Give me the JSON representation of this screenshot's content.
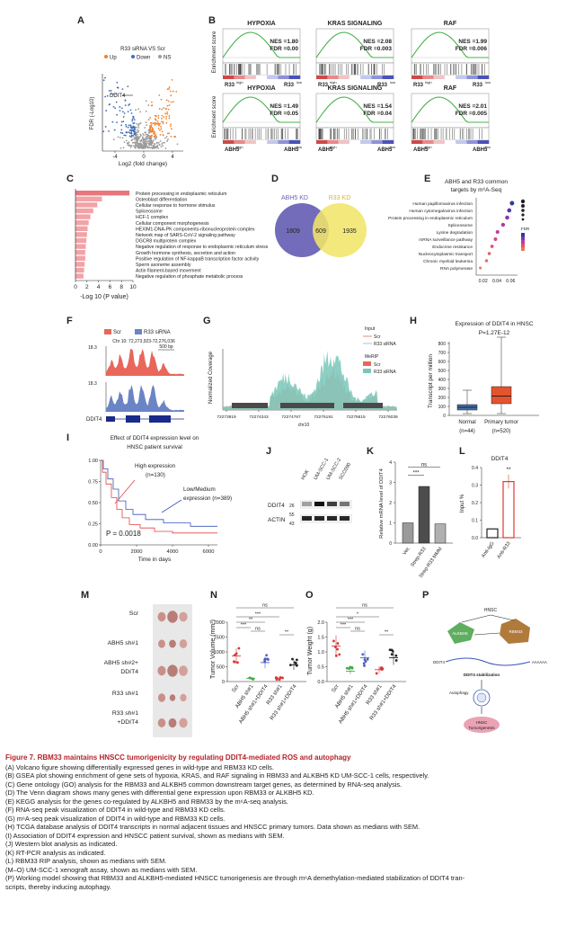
{
  "figure": {
    "panel_labels": [
      "A",
      "B",
      "C",
      "D",
      "E",
      "F",
      "G",
      "H",
      "I",
      "J",
      "K",
      "L",
      "M",
      "N",
      "O",
      "P"
    ],
    "A": {
      "title": "R33 siRNA VS Scr",
      "legend": [
        {
          "label": "Up",
          "color": "#f2802b"
        },
        {
          "label": "Down",
          "color": "#3f6fb5"
        },
        {
          "label": "NS",
          "color": "#9a9a9a"
        }
      ],
      "gene_label": "DDIT4",
      "xlabel": "Log2 (fold change)",
      "ylabel": "FDR (-Log10)",
      "xticks": [
        "-4",
        "0",
        "4"
      ]
    },
    "B": {
      "ylabel": "Enrichment score",
      "plots": [
        {
          "title": "HYPOXIA",
          "nes": "NES =1.80",
          "fdr": "FDR =0.00",
          "high": "R33",
          "low": "R33"
        },
        {
          "title": "KRAS SIGNALING",
          "nes": "NES =2.08",
          "fdr": "FDR =0.003",
          "high": "R33",
          "low": "R33"
        },
        {
          "title": "RAF",
          "nes": "NES =1.99",
          "fdr": "FDR =0.006",
          "high": "R33",
          "low": "R33"
        },
        {
          "title": "HYPOXIA",
          "nes": "NES =1.49",
          "fdr": "FDR =0.05",
          "high": "ABH5",
          "low": "ABH5"
        },
        {
          "title": "KRAS SIGNALING",
          "nes": "NES =1.54",
          "fdr": "FDR =0.04",
          "high": "ABH5",
          "low": "ABH5"
        },
        {
          "title": "RAF",
          "nes": "NES =2.01",
          "fdr": "FDR =0.005",
          "high": "ABH5",
          "low": "ABH5"
        }
      ],
      "high_sup": "high",
      "low_sup": "low"
    },
    "C": {
      "terms": [
        "Protein processing in endoplasmic reticulum",
        "Osteoblast differentiation",
        "Cellular response to hormone stimulus",
        "Spliceosome",
        "HCF-1 complex",
        "Cellular component morphogenesis",
        "HEXIM1-DNA-PK components-ribonucleoprotein complex",
        "Network map of SARS-CoV-2 signaling pathway",
        "DGCR8 multiprotein complex",
        "Negative regulation of response to endoplasmic reticulum stress",
        "Growth hormone synthesis, secretion and action",
        "Positive regulation of NF-kappaB transcription factor activity",
        "Sperm axoneme assembly",
        "Actin filament-based movement",
        "Negative regulation of phosphate metabolic process"
      ],
      "values": [
        9.4,
        4.6,
        3.8,
        3.1,
        2.6,
        2.3,
        2.1,
        2.0,
        1.9,
        1.8,
        1.7,
        1.7,
        1.6,
        1.5,
        1.4
      ],
      "xticks": [
        "0",
        "2",
        "4",
        "6",
        "8",
        "10"
      ],
      "xlabel": "-Log 10 (P value)"
    },
    "D": {
      "left_label": "ABH5 KD",
      "right_label": "R33 KD",
      "left_count": "1809",
      "overlap_count": "609",
      "right_count": "1935"
    },
    "E": {
      "title_line1": "ABH5 and R33 common",
      "title_line2": "targets by m⁶A-Seq",
      "terms": [
        "Human papillomavirus infection",
        "Human cytomegalovirus infection",
        "Protein processing in endoplasmic reticulum",
        "Spliceosome",
        "Lysine degradation",
        "mRNA surveillance pathway",
        "Endocrine resistance",
        "Nucleocytoplasmic transport",
        "Chronic myeloid leukemia",
        "RNA polymerase"
      ],
      "ratios": [
        0.062,
        0.058,
        0.055,
        0.049,
        0.041,
        0.038,
        0.033,
        0.029,
        0.025,
        0.016
      ],
      "xticks": [
        "0.02",
        "0.04",
        "0.06"
      ],
      "legend_title": "FDR"
    },
    "F": {
      "legend": [
        {
          "label": "Scr",
          "color": "#e8675a"
        },
        {
          "label": "R33 siRNA",
          "color": "#6a84c6"
        }
      ],
      "locus": "Chr 10: 72,273,923-72,276,036",
      "scale": "500 bp",
      "y_max": "18.3",
      "gene": "DDIT4"
    },
    "G": {
      "legend_input": "Input",
      "legend_merip": "MeRIP",
      "series": [
        "Scr",
        "R33 siRNA"
      ],
      "ylabel": "Normalized Coverage",
      "xticks": [
        "72273919",
        "72274343",
        "72274767",
        "72275191",
        "72275615",
        "72276039"
      ],
      "xlabel": "chr10"
    },
    "H": {
      "title": "Expression of DDIT4 in HNSC",
      "pvalue": "P=1.27E-12",
      "ylabel": "Transcript per million",
      "yticks": [
        "0",
        "100",
        "200",
        "300",
        "400",
        "500",
        "600",
        "700",
        "800"
      ],
      "groups": [
        {
          "name": "Normal",
          "n": "(n=44)",
          "color": "#3e6fb0",
          "q1": 60,
          "median": 90,
          "q3": 120,
          "min": 20,
          "max": 280
        },
        {
          "name": "Primary tumor",
          "n": "(n=520)",
          "color": "#e5532e",
          "q1": 130,
          "median": 215,
          "q3": 320,
          "min": 20,
          "max": 870
        }
      ]
    },
    "I": {
      "title_line1": "Effect  of DDIT4 expression level on",
      "title_line2": "HNSC patient survival",
      "high_label": "High expression",
      "high_n": "(n=130)",
      "low_label": "Low/Medium",
      "low_n": "expression (n=389)",
      "pvalue": "P = 0.0018",
      "xlabel": "Time in days",
      "xticks": [
        "0",
        "2000",
        "4000",
        "6000"
      ],
      "yticks": [
        "1.00",
        "0.75",
        "0.50",
        "0.25",
        "0.00"
      ]
    },
    "J": {
      "lanes": [
        "HOK",
        "UM-SCC-1",
        "UM-SCC-2",
        "SCC090"
      ],
      "rows": [
        "DDIT4",
        "ACTIN"
      ],
      "markers": [
        "26",
        "55",
        "43"
      ]
    },
    "K": {
      "ylabel": "Relative mRNA level of DDIT4",
      "categories": [
        "Vec",
        "Strep-R33",
        "Strep-R33 MMM"
      ],
      "values": [
        1.0,
        2.8,
        0.95
      ],
      "sig_labels": [
        "***",
        "ns"
      ],
      "yticks": [
        "0",
        "1",
        "2",
        "3",
        "4"
      ]
    },
    "L": {
      "title": "DDIT4",
      "ylabel": "Input %",
      "categories": [
        "Anti-IgG",
        "Anti-R33"
      ],
      "values": [
        0.05,
        0.32
      ],
      "sig_label": "**",
      "yticks": [
        "0.0",
        "0.1",
        "0.2",
        "0.3",
        "0.4"
      ]
    },
    "M": {
      "groups": [
        "Scr",
        "ABH5 sh#1",
        "ABH5 sh#2+ DDIT4",
        "R33 sh#1",
        "R33 sh#1 +DDIT4"
      ],
      "group_lines": [
        [
          "Scr"
        ],
        [
          "ABH5 sh#1"
        ],
        [
          "ABH5 sh#2+",
          "DDIT4"
        ],
        [
          "R33 sh#1"
        ],
        [
          "R33 sh#1",
          "+DDIT4"
        ]
      ]
    },
    "N": {
      "ylabel": "Tumor Volume (mm³)",
      "categories": [
        "Scr",
        "ABH5 sh#1",
        "ABH5 sh#1+DDIT4",
        "R33 sh#1",
        "R33 sh#1+DDIT4"
      ],
      "means": [
        860,
        110,
        640,
        100,
        560
      ],
      "colors": [
        "#d63b3b",
        "#4aa84a",
        "#4d5fc0",
        "#d63b3b",
        "#222222"
      ],
      "yticks": [
        "0",
        "500",
        "1000",
        "1500",
        "2000"
      ],
      "sig": [
        "ns",
        "***",
        "**",
        "***",
        "**",
        "ns"
      ]
    },
    "O": {
      "ylabel": "Tumor Weight (g)",
      "categories": [
        "Scr",
        "ABH5 sh#1",
        "ABH5 sh#1+DDIT4",
        "R33 sh#1",
        "R33 sh#1+DDIT4"
      ],
      "means": [
        1.2,
        0.35,
        0.8,
        0.4,
        0.8
      ],
      "colors": [
        "#d63b3b",
        "#4aa84a",
        "#4d5fc0",
        "#d63b3b",
        "#222222"
      ],
      "yticks": [
        "0.0",
        "0.5",
        "1.0",
        "1.5",
        "2.0"
      ],
      "sig": [
        "ns",
        "***",
        "***",
        "*",
        "**",
        "ns"
      ]
    },
    "P": {
      "top": "HNSC",
      "left_node": "ALKBH5",
      "right_node": "RBM33",
      "mrna_label": "DDIT4",
      "stabilization": "DDIT4 stabilization",
      "autophagy": "Autophagy",
      "outcome_line1": "HNSC",
      "outcome_line2": "Tumorigenesis",
      "polya": "AAAAAA"
    }
  },
  "caption": {
    "title": "Figure 7.  RBM33 maintains HNSCC tumorigenicity by regulating DDIT4-mediated ROS and autophagy",
    "lines": [
      "(A) Volcano figure showing differentially expressed genes in wild-type and RBM33 KD cells.",
      "(B) GSEA plot showing enrichment of gene sets of hypoxia, KRAS, and RAF signaling in RBM33 and ALKBH5 KD UM-SCC-1 cells, respectively.",
      "(C) Gene ontology (GO) analysis for the RBM33 and ALKBH5 common downstream target genes, as determined by RNA-seq analysis.",
      "(D) The Venn diagram shows many genes with differential gene expression upon RBM33 or ALKBH5 KD.",
      "(E) KEGG analysis for the genes co-regulated by ALKBH5 and RBM33 by the m⁶A-seq analysis.",
      "(F) RNA-seq peak visualization of DDIT4 in wild-type and RBM33 KD cells.",
      "(G) m⁶A-seq peak visualization of DDIT4 in wild-type and RBM33 KD cells.",
      "(H) TCGA database analysis of DDIT4 transcripts in normal adjacent tissues and HNSCC primary tumors. Data shown as medians with SEM.",
      "(I) Association of DDIT4 expression and HNSCC patient survival, shown as medians with SEM.",
      "(J) Western blot analysis as indicated.",
      "(K) RT-PCR analysis as indicated.",
      "(L) RBM33 RIP analysis, shown as medians with SEM.",
      "(M–O) UM-SCC-1 xenograft assay, shown as medians with SEM.",
      "(P) Working model showing that RBM33 and ALKBH5-mediated HNSCC tumorigenesis are through m⁶A demethylation-mediated stabilization of DDIT4 tran-",
      "scripts, thereby inducing autophagy."
    ]
  }
}
